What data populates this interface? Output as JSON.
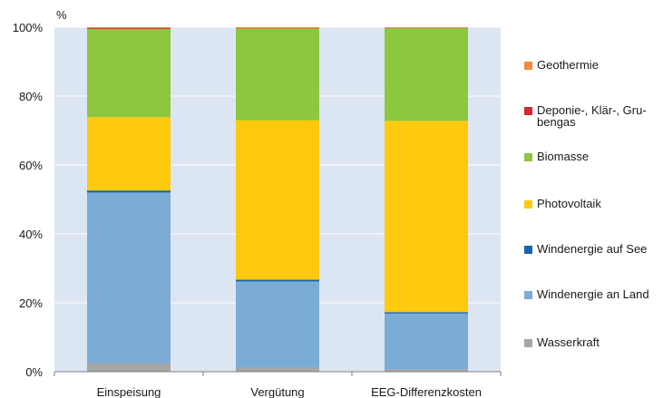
{
  "chart_data": {
    "type": "bar",
    "stacked": true,
    "unit_label": "%",
    "categories": [
      "Einspeisung",
      "Vergütung",
      "EEG-Differenzkosten"
    ],
    "yticks": [
      "0%",
      "20%",
      "40%",
      "60%",
      "80%",
      "100%"
    ],
    "ylim": [
      0,
      100
    ],
    "grid": true,
    "legend_position": "right",
    "series": [
      {
        "name": "Wasserkraft",
        "color": "#a6a6a6",
        "values": [
          2.5,
          1.2,
          0.7
        ]
      },
      {
        "name": "Windenergie an Land",
        "color": "#7bacd6",
        "values": [
          49.5,
          25.0,
          16.2
        ]
      },
      {
        "name": "Windenergie auf See",
        "color": "#1565b0",
        "values": [
          0.6,
          0.5,
          0.4
        ]
      },
      {
        "name": "Photovoltaik",
        "color": "#ffc90e",
        "values": [
          21.3,
          46.3,
          55.5
        ]
      },
      {
        "name": "Biomasse",
        "color": "#8dc63f",
        "values": [
          25.6,
          26.6,
          26.9
        ]
      },
      {
        "name": "Deponie-, Klär-, Gru-\nbengas",
        "color": "#d7282f",
        "values": [
          0.3,
          0.1,
          0.1
        ]
      },
      {
        "name": "Geothermie",
        "color": "#f58a3a",
        "values": [
          0.2,
          0.3,
          0.2
        ]
      }
    ]
  }
}
